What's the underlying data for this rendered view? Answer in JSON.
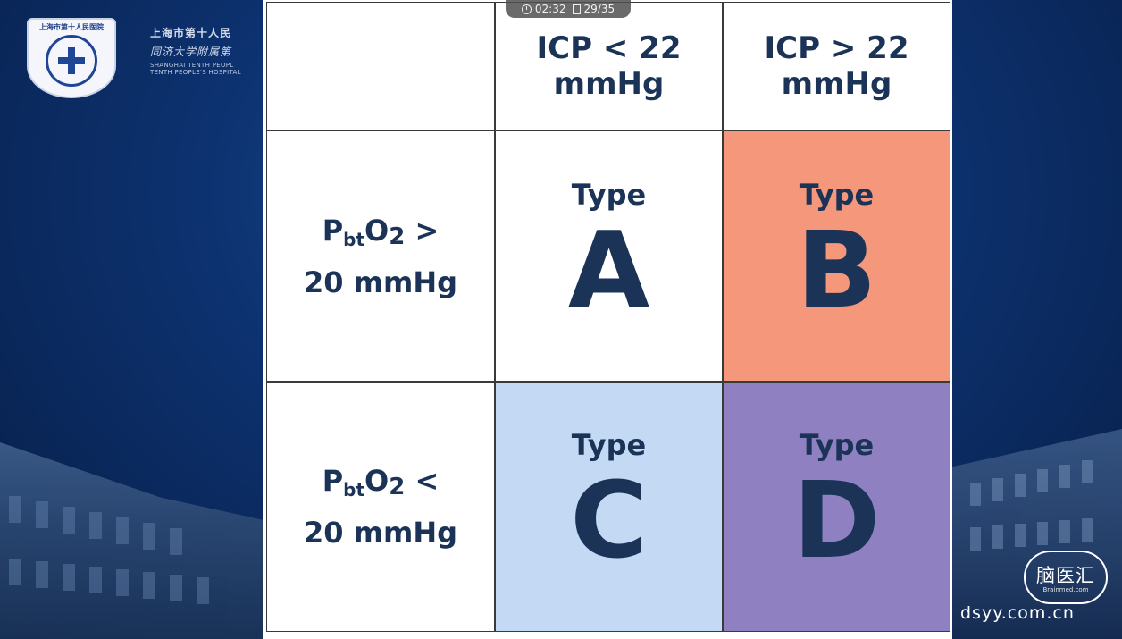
{
  "player": {
    "time": "02:32",
    "page": "29/35"
  },
  "hospital": {
    "logo_top_text": "上海市第十人民医院",
    "name_cn_line1": "上海市第十人民",
    "name_cn_line2": "同济大学附属第",
    "name_en_line1": "SHANGHAI TENTH PEOPL",
    "name_en_line2": "TENTH PEOPLE'S HOSPITAL"
  },
  "table": {
    "headers": [
      "",
      "ICP < 22 mmHg",
      "ICP > 22 mmHg"
    ],
    "header_cells": [
      {
        "line1": "ICP < 22",
        "line2": "mmHg"
      },
      {
        "line1": "ICP > 22",
        "line2": "mmHg"
      }
    ],
    "rows": [
      {
        "label_main": "P",
        "label_sub": "bt",
        "label_o": "O",
        "label_sub2": "2",
        "label_op": " >",
        "label_line2": "20 mmHg",
        "cells": [
          {
            "word": "Type",
            "letter": "A",
            "color": "#ffffff"
          },
          {
            "word": "Type",
            "letter": "B",
            "color": "#f4977a"
          }
        ]
      },
      {
        "label_main": "P",
        "label_sub": "bt",
        "label_o": "O",
        "label_sub2": "2",
        "label_op": " <",
        "label_line2": "20 mmHg",
        "cells": [
          {
            "word": "Type",
            "letter": "C",
            "color": "#c4daf4"
          },
          {
            "word": "Type",
            "letter": "D",
            "color": "#8f81c1"
          }
        ]
      }
    ],
    "text_color": "#1b3357"
  },
  "watermark": {
    "logo_text": "脑医汇",
    "logo_small": "Brainmed.com",
    "url": "dsyy.com.cn"
  }
}
